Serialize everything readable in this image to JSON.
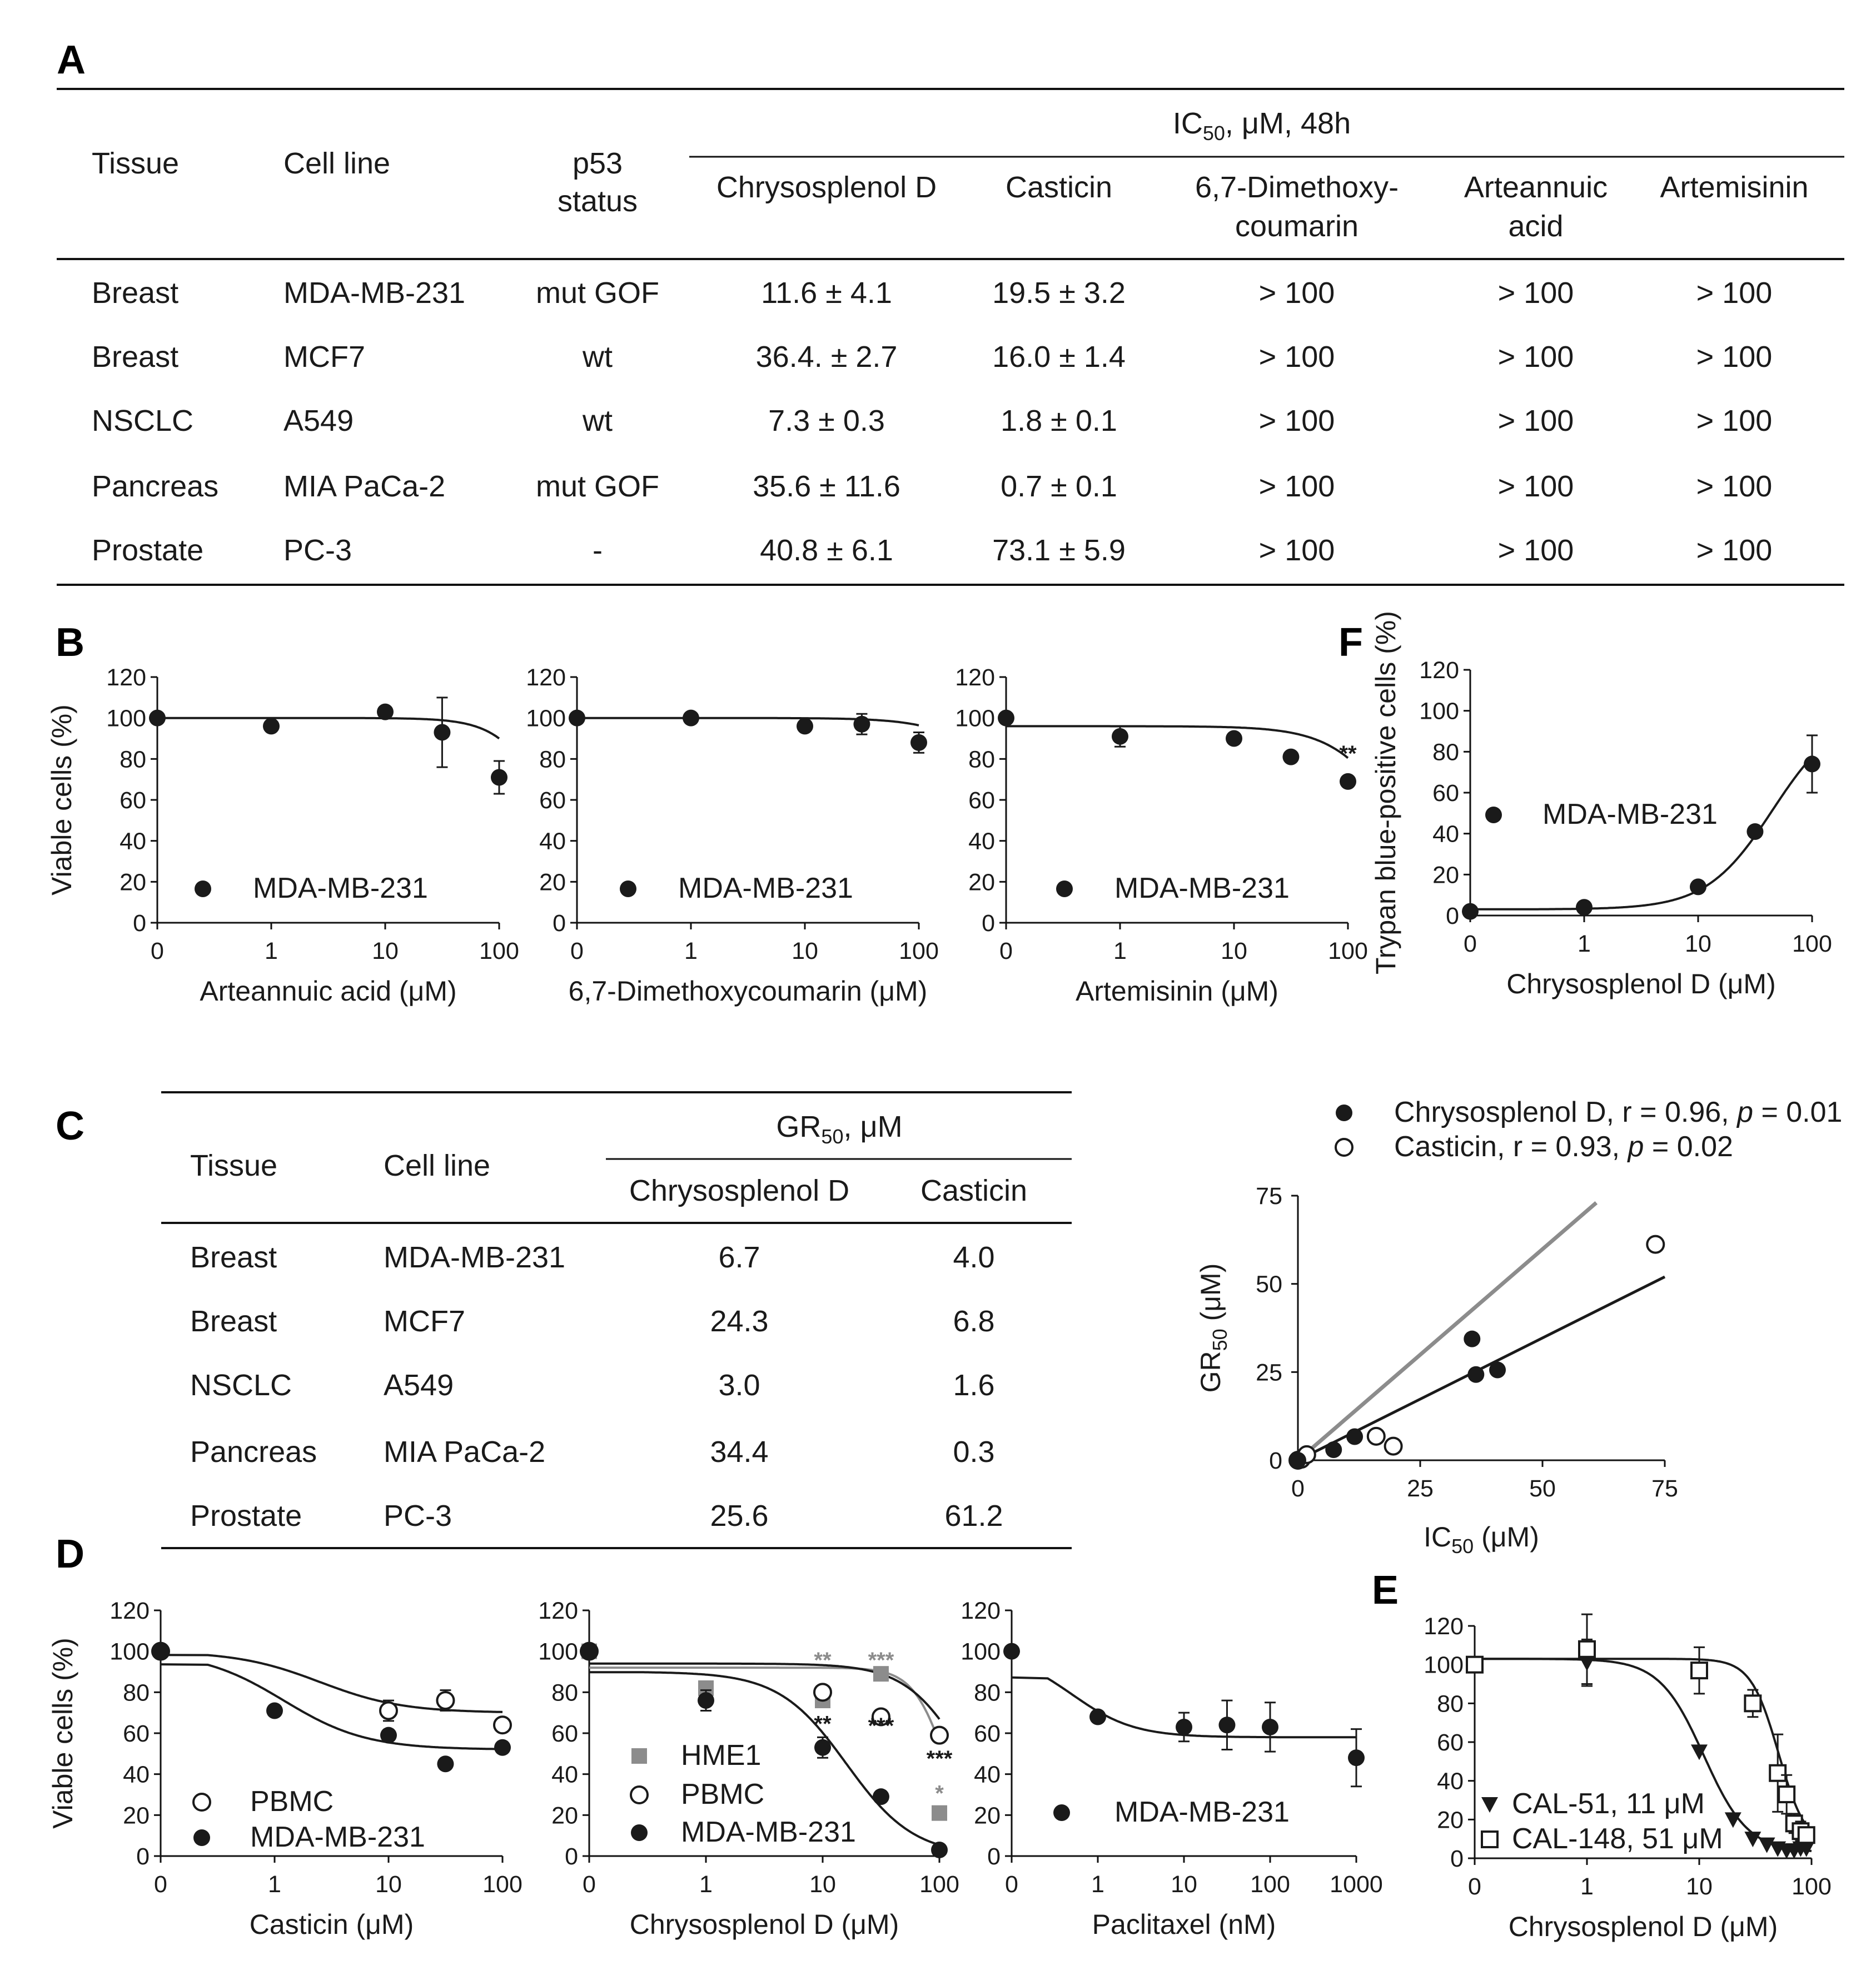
{
  "panel_labels": {
    "A": "A",
    "B": "B",
    "C": "C",
    "D": "D",
    "E": "E",
    "F": "F"
  },
  "table_a": {
    "headers": {
      "tissue": "Tissue",
      "cell_line": "Cell line",
      "p53_line1": "p53",
      "p53_line2": "status",
      "group_main": "IC",
      "group_sub": "50",
      "group_suffix": ", μM, 48h"
    },
    "compounds": [
      {
        "line1": "Chrysosplenol D",
        "line2": ""
      },
      {
        "line1": "Casticin",
        "line2": ""
      },
      {
        "line1": "6,7-Dimethoxy-",
        "line2": "coumarin"
      },
      {
        "line1": "Arteannuic",
        "line2": "acid"
      },
      {
        "line1": "Artemisinin",
        "line2": ""
      }
    ],
    "rows": [
      {
        "tissue": "Breast",
        "cell_line": "MDA-MB-231",
        "p53": "mut GOF",
        "values": [
          "11.6 ± 4.1",
          "19.5 ± 3.2",
          "> 100",
          "> 100",
          "> 100"
        ]
      },
      {
        "tissue": "Breast",
        "cell_line": "MCF7",
        "p53": "wt",
        "values": [
          "36.4. ± 2.7",
          "16.0 ± 1.4",
          "> 100",
          "> 100",
          "> 100"
        ]
      },
      {
        "tissue": "NSCLC",
        "cell_line": "A549",
        "p53": "wt",
        "values": [
          "7.3 ± 0.3",
          "1.8 ± 0.1",
          "> 100",
          "> 100",
          "> 100"
        ]
      },
      {
        "tissue": "Pancreas",
        "cell_line": "MIA PaCa-2",
        "p53": "mut GOF",
        "values": [
          "35.6 ± 11.6",
          "0.7 ± 0.1",
          "> 100",
          "> 100",
          "> 100"
        ]
      },
      {
        "tissue": "Prostate",
        "cell_line": "PC-3",
        "p53": "-",
        "values": [
          "40.8 ± 6.1",
          "73.1 ± 5.9",
          "> 100",
          "> 100",
          "> 100"
        ]
      }
    ]
  },
  "table_c": {
    "headers": {
      "tissue": "Tissue",
      "cell_line": "Cell line",
      "group_main": "GR",
      "group_sub": "50",
      "group_suffix": ", μM",
      "col1": "Chrysosplenol D",
      "col2": "Casticin"
    },
    "rows": [
      {
        "tissue": "Breast",
        "cell_line": "MDA-MB-231",
        "values": [
          "6.7",
          "4.0"
        ]
      },
      {
        "tissue": "Breast",
        "cell_line": "MCF7",
        "values": [
          "24.3",
          "6.8"
        ]
      },
      {
        "tissue": "NSCLC",
        "cell_line": "A549",
        "values": [
          "3.0",
          "1.6"
        ]
      },
      {
        "tissue": "Pancreas",
        "cell_line": "MIA PaCa-2",
        "values": [
          "34.4",
          "0.3"
        ]
      },
      {
        "tissue": "Prostate",
        "cell_line": "PC-3",
        "values": [
          "25.6",
          "61.2"
        ]
      }
    ]
  },
  "colors": {
    "black": "#1a1a1a",
    "gray": "#8c8c8c"
  },
  "chart_data": [
    {
      "id": "B1",
      "type": "scatter",
      "xscale": "log",
      "ylabel": "Viable cells (%)",
      "xlabel": "Arteannuic acid (μM)",
      "xticks": [
        "0",
        "1",
        "10",
        "100"
      ],
      "yticks": [
        "0",
        "20",
        "40",
        "60",
        "80",
        "100",
        "120"
      ],
      "ylim": [
        0,
        120
      ],
      "series": [
        {
          "name": "MDA-MB-231",
          "marker": "filled",
          "color": "black",
          "points": [
            {
              "x": 0,
              "y": 100,
              "err": 0
            },
            {
              "x": 1,
              "y": 96,
              "err": 0
            },
            {
              "x": 10,
              "y": 103,
              "err": 0
            },
            {
              "x": 31.6,
              "y": 93,
              "err": 17
            },
            {
              "x": 100,
              "y": 71,
              "err": 8
            }
          ],
          "curve": {
            "top": 100,
            "bottom": 0,
            "ec50": 300,
            "hill": 2
          }
        }
      ]
    },
    {
      "id": "B2",
      "type": "scatter",
      "xscale": "log",
      "ylabel": "",
      "xlabel": "6,7-Dimethoxycoumarin (μM)",
      "xticks": [
        "0",
        "1",
        "10",
        "100"
      ],
      "yticks": [
        "0",
        "20",
        "40",
        "60",
        "80",
        "100",
        "120"
      ],
      "ylim": [
        0,
        120
      ],
      "series": [
        {
          "name": "MDA-MB-231",
          "marker": "filled",
          "color": "black",
          "points": [
            {
              "x": 0,
              "y": 100,
              "err": 0
            },
            {
              "x": 1,
              "y": 100,
              "err": 0
            },
            {
              "x": 10,
              "y": 96,
              "err": 0
            },
            {
              "x": 31.6,
              "y": 97,
              "err": 5
            },
            {
              "x": 100,
              "y": 88,
              "err": 5
            }
          ],
          "curve": {
            "top": 100,
            "bottom": 0,
            "ec50": 900,
            "hill": 1.5
          }
        }
      ]
    },
    {
      "id": "B3",
      "type": "scatter",
      "xscale": "log",
      "ylabel": "",
      "xlabel": "Artemisinin (μM)",
      "xticks": [
        "0",
        "1",
        "10",
        "100"
      ],
      "yticks": [
        "0",
        "20",
        "40",
        "60",
        "80",
        "100",
        "120"
      ],
      "ylim": [
        0,
        120
      ],
      "series": [
        {
          "name": "MDA-MB-231",
          "marker": "filled",
          "color": "black",
          "points": [
            {
              "x": 0,
              "y": 100,
              "err": 0
            },
            {
              "x": 1,
              "y": 91,
              "err": 5
            },
            {
              "x": 10,
              "y": 90,
              "err": 0
            },
            {
              "x": 31.6,
              "y": 81,
              "err": 0
            },
            {
              "x": 100,
              "y": 69,
              "err": 0
            }
          ],
          "curve": {
            "top": 96,
            "bottom": 0,
            "ec50": 300,
            "hill": 1.5
          }
        }
      ],
      "annotations": [
        {
          "text": "**",
          "x": 100,
          "y": 79,
          "color": "black"
        }
      ]
    },
    {
      "id": "F",
      "type": "scatter",
      "xscale": "log",
      "ylabel": "Trypan blue-positive cells (%)",
      "xlabel": "Chrysosplenol D (μM)",
      "xticks": [
        "0",
        "1",
        "10",
        "100"
      ],
      "yticks": [
        "0",
        "20",
        "40",
        "60",
        "80",
        "100",
        "120"
      ],
      "ylim": [
        0,
        120
      ],
      "series": [
        {
          "name": "MDA-MB-231",
          "marker": "filled",
          "color": "black",
          "points": [
            {
              "x": 0,
              "y": 2,
              "err": 0
            },
            {
              "x": 1,
              "y": 4,
              "err": 0
            },
            {
              "x": 10,
              "y": 14,
              "err": 0
            },
            {
              "x": 31.6,
              "y": 41,
              "err": 0
            },
            {
              "x": 100,
              "y": 74,
              "err": 14
            }
          ],
          "curve": {
            "type": "rise",
            "bottom": 3,
            "top": 100,
            "ec50": 45,
            "hill": 1.5
          }
        }
      ]
    },
    {
      "id": "corr",
      "type": "scatter",
      "xscale": "linear",
      "ylabel": "GR50 (μM)",
      "xlabel": "IC50 (μM)",
      "xticks": [
        "0",
        "25",
        "50",
        "75"
      ],
      "yticks": [
        "0",
        "25",
        "50",
        "75"
      ],
      "xlim": [
        0,
        75
      ],
      "ylim": [
        0,
        75
      ],
      "legend": [
        {
          "name": "Chrysosplenol D",
          "stats": ", r = 0.96, ",
          "p_label": "p",
          "p_value": " = 0.01",
          "color": "black"
        },
        {
          "name": "Casticin",
          "stats": ", r = 0.93, ",
          "p_label": "p",
          "p_value": " = 0.02",
          "color": "gray"
        }
      ],
      "series": [
        {
          "name": "Chrysosplenol D",
          "marker": "filled",
          "color": "black",
          "points": [
            {
              "x": 0,
              "y": 0
            },
            {
              "x": 7.3,
              "y": 3.0
            },
            {
              "x": 11.6,
              "y": 6.7
            },
            {
              "x": 35.6,
              "y": 34.4
            },
            {
              "x": 36.4,
              "y": 24.3
            },
            {
              "x": 40.8,
              "y": 25.6
            }
          ],
          "fit": {
            "x0": 0,
            "y0": 0,
            "x1": 75,
            "y1": 52
          }
        },
        {
          "name": "Casticin",
          "marker": "open",
          "color": "black",
          "points": [
            {
              "x": 0,
              "y": 0
            },
            {
              "x": 0.7,
              "y": 0.3
            },
            {
              "x": 1.8,
              "y": 1.6
            },
            {
              "x": 16.0,
              "y": 6.8
            },
            {
              "x": 19.5,
              "y": 4.0
            },
            {
              "x": 73.1,
              "y": 61.2
            }
          ],
          "fit": {
            "x0": 0,
            "y0": 0,
            "x1": 61,
            "y1": 73
          }
        }
      ]
    },
    {
      "id": "D1",
      "type": "scatter",
      "xscale": "log",
      "ylabel": "Viable cells (%)",
      "xlabel": "Casticin (μM)",
      "xticks": [
        "0",
        "1",
        "10",
        "100"
      ],
      "yticks": [
        "0",
        "20",
        "40",
        "60",
        "80",
        "100",
        "120"
      ],
      "ylim": [
        0,
        120
      ],
      "series": [
        {
          "name": "PBMC",
          "marker": "open",
          "color": "black",
          "points": [
            {
              "x": 0,
              "y": 100,
              "err": 0
            },
            {
              "x": 10,
              "y": 71,
              "err": 5
            },
            {
              "x": 31.6,
              "y": 76,
              "err": 5
            },
            {
              "x": 100,
              "y": 64,
              "err": 0
            }
          ],
          "curve": {
            "top": 100,
            "bottom": 70,
            "ec50": 2.5,
            "hill": 1.2
          }
        },
        {
          "name": "MDA-MB-231",
          "marker": "filled",
          "color": "black",
          "points": [
            {
              "x": 0,
              "y": 100,
              "err": 0
            },
            {
              "x": 1,
              "y": 71,
              "err": 0
            },
            {
              "x": 10,
              "y": 59,
              "err": 0
            },
            {
              "x": 31.6,
              "y": 45,
              "err": 0
            },
            {
              "x": 100,
              "y": 53,
              "err": 0
            }
          ],
          "curve": {
            "top": 100,
            "bottom": 52,
            "ec50": 1.2,
            "hill": 1.2
          }
        }
      ]
    },
    {
      "id": "D2",
      "type": "scatter",
      "xscale": "log",
      "ylabel": "",
      "xlabel": "Chrysosplenol D (μM)",
      "xticks": [
        "0",
        "1",
        "10",
        "100"
      ],
      "yticks": [
        "0",
        "20",
        "40",
        "60",
        "80",
        "100",
        "120"
      ],
      "ylim": [
        0,
        120
      ],
      "series": [
        {
          "name": "HME1",
          "marker": "square",
          "color": "gray",
          "points": [
            {
              "x": 0,
              "y": 100,
              "err": 0
            },
            {
              "x": 1,
              "y": 82,
              "err": 0
            },
            {
              "x": 10,
              "y": 76,
              "err": 0
            },
            {
              "x": 31.6,
              "y": 89,
              "err": 0
            },
            {
              "x": 100,
              "y": 21,
              "err": 0
            }
          ],
          "curve": {
            "top": 92,
            "bottom": 0,
            "ec50": 115,
            "hill": 3
          }
        },
        {
          "name": "PBMC",
          "marker": "open",
          "color": "black",
          "points": [
            {
              "x": 0,
              "y": 100,
              "err": 0
            },
            {
              "x": 10,
              "y": 80,
              "err": 0
            },
            {
              "x": 31.6,
              "y": 68,
              "err": 0
            },
            {
              "x": 100,
              "y": 59,
              "err": 0
            }
          ],
          "curve": {
            "top": 94,
            "bottom": 0,
            "ec50": 170,
            "hill": 1.7
          }
        },
        {
          "name": "MDA-MB-231",
          "marker": "filled",
          "color": "black",
          "points": [
            {
              "x": 0,
              "y": 100,
              "err": 0
            },
            {
              "x": 1,
              "y": 76,
              "err": 5
            },
            {
              "x": 10,
              "y": 53,
              "err": 5
            },
            {
              "x": 31.6,
              "y": 29,
              "err": 0
            },
            {
              "x": 100,
              "y": 3,
              "err": 0
            }
          ],
          "curve": {
            "top": 90,
            "bottom": 0,
            "ec50": 16,
            "hill": 1.5
          }
        }
      ],
      "annotations": [
        {
          "text": "**",
          "x": 10,
          "y": 92,
          "color": "gray"
        },
        {
          "text": "***",
          "x": 31.6,
          "y": 92,
          "color": "gray"
        },
        {
          "text": "**",
          "x": 10,
          "y": 61,
          "color": "black"
        },
        {
          "text": "***",
          "x": 31.6,
          "y": 60,
          "color": "black"
        },
        {
          "text": "***",
          "x": 100,
          "y": 44,
          "color": "black"
        },
        {
          "text": "*",
          "x": 100,
          "y": 27,
          "color": "gray"
        }
      ]
    },
    {
      "id": "D3",
      "type": "scatter",
      "xscale": "log",
      "ylabel": "",
      "xlabel": "Paclitaxel (nM)",
      "xticks": [
        "0",
        "1",
        "10",
        "100",
        "1000"
      ],
      "yticks": [
        "0",
        "20",
        "40",
        "60",
        "80",
        "100",
        "120"
      ],
      "ylim": [
        0,
        120
      ],
      "series": [
        {
          "name": "MDA-MB-231",
          "marker": "filled",
          "color": "black",
          "points": [
            {
              "x": 0,
              "y": 100,
              "err": 0
            },
            {
              "x": 1,
              "y": 68,
              "err": 0
            },
            {
              "x": 10,
              "y": 63,
              "err": 7
            },
            {
              "x": 31.6,
              "y": 64,
              "err": 12
            },
            {
              "x": 100,
              "y": 63,
              "err": 12
            },
            {
              "x": 1000,
              "y": 48,
              "err": 14
            }
          ],
          "curve": {
            "top": 100,
            "bottom": 58,
            "ec50": 0.5,
            "hill": 1.2
          }
        }
      ]
    },
    {
      "id": "E",
      "type": "scatter",
      "xscale": "log",
      "ylabel": "",
      "xlabel": "Chrysosplenol D (μM)",
      "xticks": [
        "0",
        "1",
        "10",
        "100"
      ],
      "yticks": [
        "0",
        "20",
        "40",
        "60",
        "80",
        "100",
        "120"
      ],
      "ylim": [
        0,
        120
      ],
      "series": [
        {
          "name": "CAL-51, 11 μM",
          "marker": "triangle",
          "color": "black",
          "points": [
            {
              "x": 0,
              "y": 100,
              "err": 0
            },
            {
              "x": 1,
              "y": 101,
              "err": 12
            },
            {
              "x": 10,
              "y": 55,
              "err": 0
            },
            {
              "x": 20,
              "y": 20,
              "err": 0
            },
            {
              "x": 30,
              "y": 10,
              "err": 0
            },
            {
              "x": 40,
              "y": 7,
              "err": 0
            },
            {
              "x": 50,
              "y": 5,
              "err": 0
            },
            {
              "x": 60,
              "y": 4,
              "err": 0
            },
            {
              "x": 70,
              "y": 4,
              "err": 0
            },
            {
              "x": 80,
              "y": 5,
              "err": 0
            },
            {
              "x": 90,
              "y": 5,
              "err": 0
            }
          ],
          "curve": {
            "top": 103,
            "bottom": 3,
            "ec50": 11,
            "hill": 2.2
          }
        },
        {
          "name": "CAL-148, 51 μM",
          "marker": "opensquare",
          "color": "black",
          "points": [
            {
              "x": 0,
              "y": 100,
              "err": 0
            },
            {
              "x": 1,
              "y": 108,
              "err": 18
            },
            {
              "x": 10,
              "y": 97,
              "err": 12
            },
            {
              "x": 30,
              "y": 80,
              "err": 7
            },
            {
              "x": 50,
              "y": 44,
              "err": 20
            },
            {
              "x": 60,
              "y": 33,
              "err": 10
            },
            {
              "x": 70,
              "y": 18,
              "err": 5
            },
            {
              "x": 80,
              "y": 14,
              "err": 5
            },
            {
              "x": 90,
              "y": 12,
              "err": 4
            }
          ],
          "curve": {
            "top": 103,
            "bottom": 5,
            "ec50": 51,
            "hill": 3.5
          }
        }
      ]
    }
  ]
}
